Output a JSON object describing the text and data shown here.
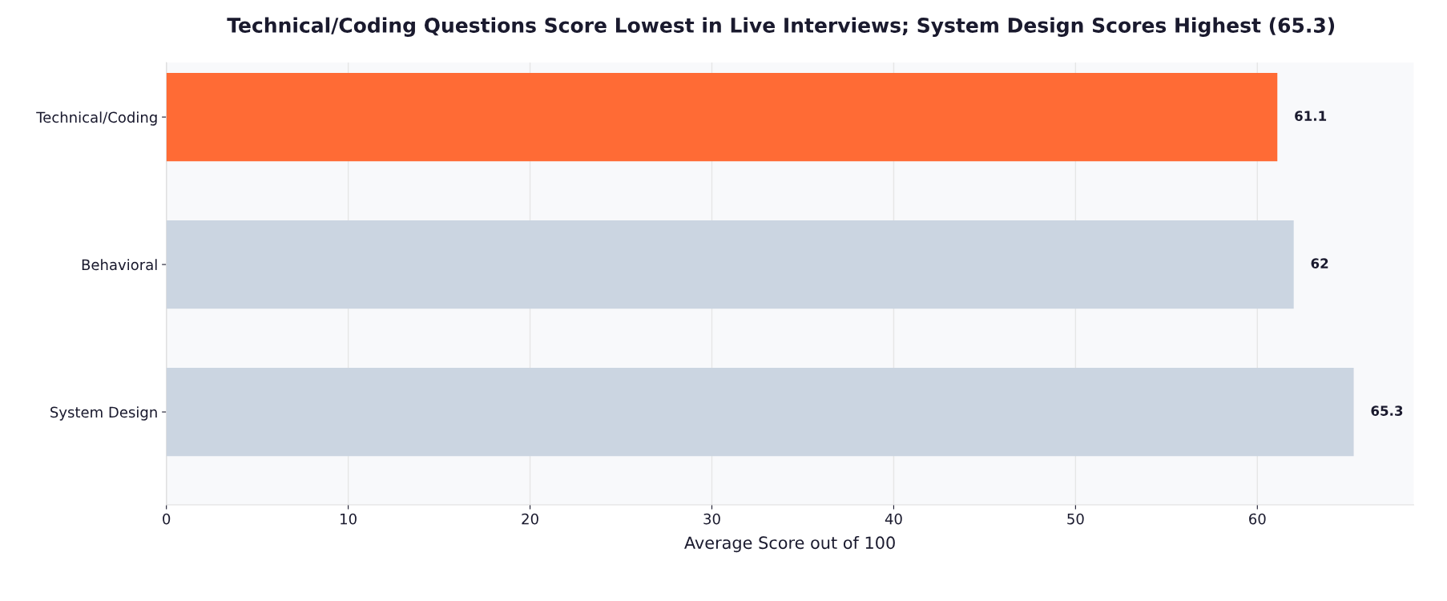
{
  "chart_data": {
    "type": "bar",
    "orientation": "horizontal",
    "title": "Technical/Coding Questions Score Lowest in Live Interviews; System Design Scores Highest (65.3)",
    "xlabel": "Average Score out of 100",
    "categories": [
      "Technical/Coding",
      "Behavioral",
      "System Design"
    ],
    "values": [
      61.1,
      62,
      65.3
    ],
    "colors": [
      "#ff6b35",
      "#cbd5e1",
      "#cbd5e1"
    ],
    "xlim": [
      0,
      68.6
    ],
    "xticks": [
      0,
      10,
      20,
      30,
      40,
      50,
      60
    ],
    "grid": "x",
    "data_labels": true
  }
}
